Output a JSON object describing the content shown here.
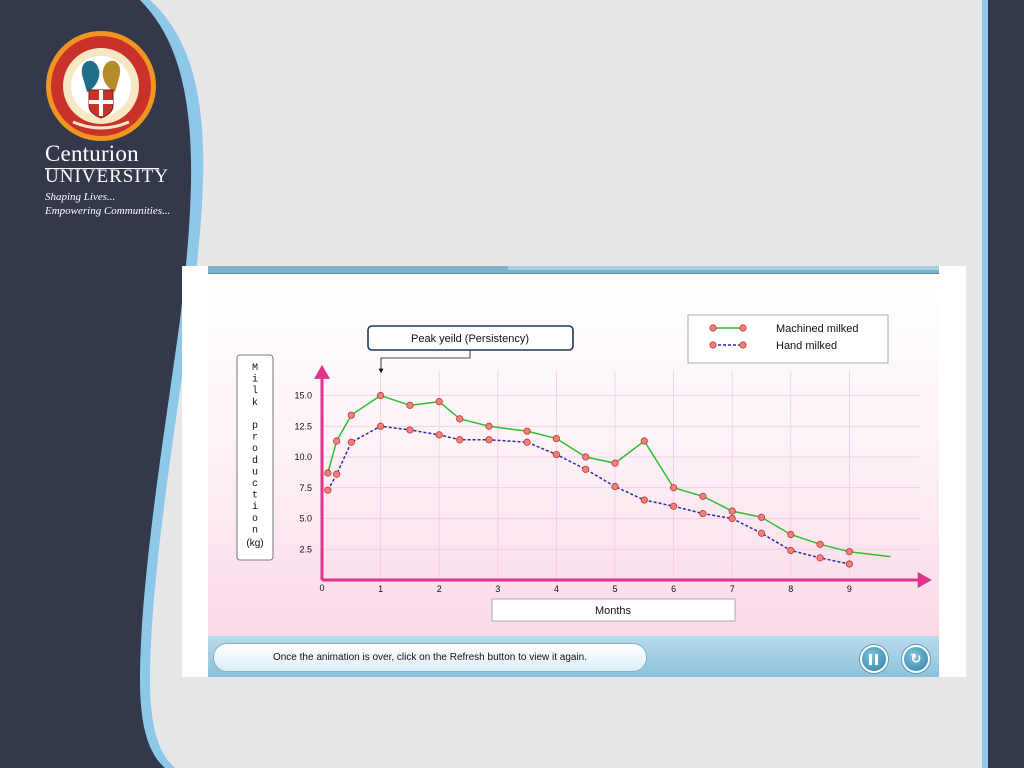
{
  "brand": {
    "name": "Centurion",
    "subname": "UNIVERSITY",
    "tagline1": "Shaping Lives...",
    "tagline2": "Empowering Communities...",
    "logo_icon": "university-emblem-icon",
    "colors": {
      "sidebar": "#33394a",
      "accent": "#8ec8e8",
      "emblem_orange": "#f0951f",
      "emblem_red": "#c8322b"
    }
  },
  "app": {
    "message": "Once the animation is over, click on the Refresh button to view it again.",
    "pause_icon": "pause-icon",
    "refresh_icon": "refresh-icon"
  },
  "chart_data": {
    "type": "line",
    "title": "",
    "annotation": "Peak yeild (Persistency)",
    "xlabel": "Months",
    "ylabel_letters": [
      "M",
      "i",
      "l",
      "k",
      "",
      "p",
      "r",
      "o",
      "d",
      "u",
      "c",
      "t",
      "i",
      "o",
      "n"
    ],
    "ylabel_unit": "(kg)",
    "x_ticks": [
      "1",
      "2",
      "3",
      "4",
      "5",
      "6",
      "7",
      "8",
      "9"
    ],
    "y_ticks": [
      "15.0",
      "12.5",
      "10.0",
      "7.5",
      "5.0",
      "2.5"
    ],
    "origin_label": "0",
    "xlim": [
      0,
      10.2
    ],
    "ylim": [
      0,
      17
    ],
    "legend_position": "top-right",
    "grid": true,
    "series": [
      {
        "name": "Machined milked",
        "color": "#2fbf2f",
        "dash": false,
        "x": [
          0.1,
          0.25,
          0.5,
          1.0,
          1.5,
          2.0,
          2.35,
          2.85,
          3.5,
          4.0,
          4.5,
          5.0,
          5.5,
          6.0,
          6.5,
          7.0,
          7.5,
          8.0,
          8.5,
          9.0
        ],
        "y": [
          8.7,
          11.3,
          13.4,
          15.0,
          14.2,
          14.5,
          13.1,
          12.5,
          12.1,
          11.5,
          10.0,
          9.5,
          11.3,
          7.5,
          6.8,
          5.6,
          5.1,
          3.7,
          2.9,
          2.3
        ],
        "markers": true,
        "tail": {
          "x": [
            9.0,
            9.7
          ],
          "y": [
            2.3,
            1.9
          ]
        }
      },
      {
        "name": "Hand milked",
        "color": "#2a2f9e",
        "dash": true,
        "x": [
          0.1,
          0.25,
          0.5,
          1.0,
          1.5,
          2.0,
          2.35,
          2.85,
          3.5,
          4.0,
          4.5,
          5.0,
          5.5,
          6.0,
          6.5,
          7.0,
          7.5,
          8.0,
          8.5,
          9.0
        ],
        "y": [
          7.3,
          8.6,
          11.2,
          12.5,
          12.2,
          11.8,
          11.4,
          11.4,
          11.2,
          10.2,
          9.0,
          7.6,
          6.5,
          6.0,
          5.4,
          5.0,
          3.8,
          2.4,
          1.8,
          1.3
        ],
        "markers": true
      }
    ],
    "colors": {
      "axis": "#e0338a",
      "grid": "#f3c6dc",
      "marker": "#f08080",
      "marker_stroke": "#c0392b"
    }
  }
}
